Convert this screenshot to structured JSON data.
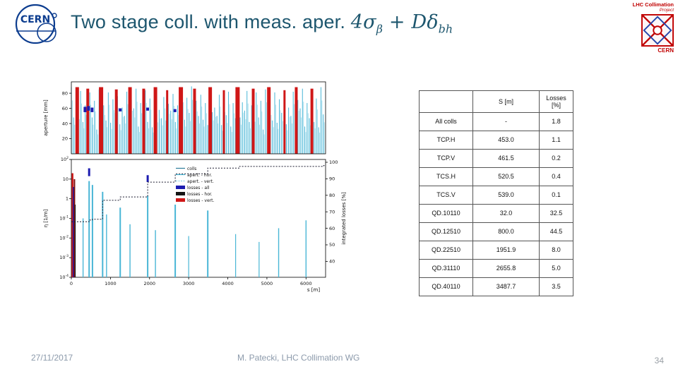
{
  "title": {
    "plain": "Two stage coll. with meas. aper. ",
    "m1": "4σ",
    "m1sub": "β",
    "m2": " + Dδ",
    "m2sub": "bh"
  },
  "logos": {
    "cern": "CERN",
    "lhc_line1": "LHC Collimation",
    "lhc_line2": "Project",
    "lhc_cern": "CERN"
  },
  "footer": {
    "date": "27/11/2017",
    "credit": "M. Patecki, LHC Collimation WG",
    "page": "34"
  },
  "table": {
    "headers": [
      "",
      "S [m]",
      "Losses [%]"
    ],
    "rows": [
      [
        "All colls",
        "-",
        "1.8"
      ],
      [
        "TCP.H",
        "453.0",
        "1.1"
      ],
      [
        "TCP.V",
        "461.5",
        "0.2"
      ],
      [
        "TCS.H",
        "520.5",
        "0.4"
      ],
      [
        "TCS.V",
        "539.0",
        "0.1"
      ],
      [
        "QD.10110",
        "32.0",
        "32.5"
      ],
      [
        "QD.12510",
        "800.0",
        "44.5"
      ],
      [
        "QD.22510",
        "1951.9",
        "8.0"
      ],
      [
        "QD.31110",
        "2655.8",
        "5.0"
      ],
      [
        "QD.40110",
        "3487.7",
        "3.5"
      ]
    ]
  },
  "chart_data": {
    "type": "line",
    "top_plot": {
      "ylabel": "aperture [mm]",
      "yticks": [
        20,
        40,
        60,
        80
      ],
      "ymax": 95,
      "comb_pattern_mm": [
        88,
        52,
        76,
        60,
        90,
        44,
        70,
        54,
        86,
        48,
        74,
        40,
        88,
        56,
        66,
        50,
        82,
        46,
        72,
        58,
        84,
        42,
        68,
        52
      ],
      "red_spikes": [
        [
          150,
          88,
          5
        ],
        [
          420,
          86,
          4
        ],
        [
          760,
          88,
          6
        ],
        [
          1150,
          85,
          4
        ],
        [
          1500,
          88,
          5
        ],
        [
          1850,
          86,
          4
        ],
        [
          2150,
          88,
          5
        ],
        [
          2450,
          84,
          3
        ],
        [
          2800,
          88,
          6
        ],
        [
          3150,
          86,
          4
        ],
        [
          3550,
          88,
          5
        ],
        [
          3900,
          84,
          3
        ],
        [
          4250,
          88,
          6
        ],
        [
          4650,
          86,
          4
        ],
        [
          5050,
          88,
          5
        ],
        [
          5450,
          84,
          3
        ],
        [
          5750,
          88,
          4
        ],
        [
          6150,
          86,
          4
        ]
      ],
      "navy_marks": [
        [
          350,
          55,
          62
        ],
        [
          440,
          57,
          63
        ],
        [
          530,
          55,
          61
        ],
        [
          1250,
          56,
          60
        ],
        [
          1950,
          57,
          61
        ],
        [
          2650,
          55,
          59
        ]
      ]
    },
    "bottom_plot": {
      "ylabel": "η [1/m]",
      "right_label": "integrated losses [%]",
      "xlabel": "s [m]",
      "xmax": 6500,
      "yticks_exp": [
        2,
        1,
        0,
        -1,
        -2,
        -3,
        -4
      ],
      "right_ticks": [
        100,
        90,
        80,
        70,
        60,
        50,
        40
      ],
      "xticks": [
        0,
        1000,
        2000,
        3000,
        4000,
        5000,
        6000
      ],
      "legend": [
        {
          "label": "colls",
          "type": "line",
          "color": "#2e7d9a"
        },
        {
          "label": "apert. - hor.",
          "type": "line",
          "color": "#49b6d6"
        },
        {
          "label": "apert. - vert.",
          "type": "dash",
          "color": "#8fd4e6"
        },
        {
          "label": "losses - all",
          "type": "box",
          "color": "#1c1cb0"
        },
        {
          "label": "losses - hor.",
          "type": "box",
          "color": "#151515"
        },
        {
          "label": "losses - vert.",
          "type": "box",
          "color": "#cf1717"
        }
      ],
      "spikes": [
        {
          "s": 30,
          "t": 1.3,
          "c": "red",
          "w": 2.5
        },
        {
          "s": 55,
          "t": 0.6,
          "c": "navy",
          "w": 2
        },
        {
          "s": 80,
          "t": 1.0,
          "c": "maroon",
          "w": 2
        },
        {
          "s": 100,
          "t": -0.3,
          "c": "black",
          "w": 1.2
        },
        {
          "s": 300,
          "t": -1.0,
          "c": "cyan",
          "w": 1.4
        },
        {
          "s": 455,
          "t": 0.9,
          "c": "cyan",
          "w": 2
        },
        {
          "s": 540,
          "t": 0.7,
          "c": "cyan",
          "w": 2
        },
        {
          "s": 455,
          "t": 1.55,
          "b": 1.15,
          "c": "navy",
          "w": 3
        },
        {
          "s": 800,
          "t": 0.35,
          "c": "cyan",
          "w": 2
        },
        {
          "s": 900,
          "t": -0.8,
          "c": "cyan",
          "w": 1.4
        },
        {
          "s": 1250,
          "t": -0.45,
          "c": "cyan",
          "w": 2
        },
        {
          "s": 1500,
          "t": -1.3,
          "c": "cyan",
          "w": 1.4
        },
        {
          "s": 1952,
          "t": 0.15,
          "c": "cyan",
          "w": 2
        },
        {
          "s": 1952,
          "t": 1.2,
          "b": 0.85,
          "c": "navy",
          "w": 3
        },
        {
          "s": 2150,
          "t": -1.6,
          "c": "cyan",
          "w": 1.4
        },
        {
          "s": 2656,
          "t": -0.3,
          "c": "cyan",
          "w": 2
        },
        {
          "s": 3000,
          "t": -1.9,
          "c": "cyan",
          "w": 1.2
        },
        {
          "s": 3488,
          "t": -0.6,
          "c": "cyan",
          "w": 2
        },
        {
          "s": 4200,
          "t": -1.8,
          "c": "cyan",
          "w": 1.2
        },
        {
          "s": 4800,
          "t": -2.2,
          "c": "cyan",
          "w": 1.2
        },
        {
          "s": 5300,
          "t": -1.5,
          "c": "cyan",
          "w": 1.4
        },
        {
          "s": 6000,
          "t": -1.1,
          "c": "cyan",
          "w": 1.4
        }
      ],
      "integrated_steps": [
        [
          0,
          64
        ],
        [
          453,
          65
        ],
        [
          539,
          65.5
        ],
        [
          800,
          77
        ],
        [
          1250,
          79
        ],
        [
          1952,
          88
        ],
        [
          2656,
          93
        ],
        [
          3488,
          96.5
        ],
        [
          4300,
          97.5
        ],
        [
          6450,
          98
        ]
      ]
    },
    "colors": {
      "cyan": "#49b6d6",
      "red": "#cf1717",
      "navy": "#1c1cb0",
      "maroon": "#7a1010",
      "black": "#222222",
      "step": "#1a1a2e"
    }
  }
}
